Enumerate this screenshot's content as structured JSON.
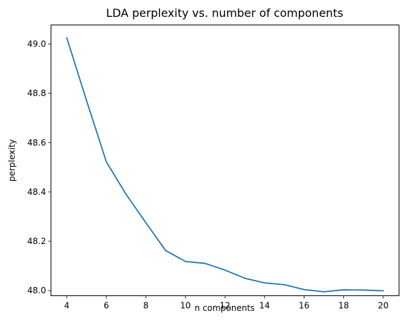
{
  "chart_data": {
    "type": "line",
    "title": "LDA perplexity vs. number of components",
    "xlabel": "n components",
    "ylabel": "perplexity",
    "xlim": [
      3.2,
      20.8
    ],
    "ylim": [
      47.979,
      49.077
    ],
    "x_ticks": [
      4,
      6,
      8,
      10,
      12,
      14,
      16,
      18,
      20
    ],
    "x_tick_labels": [
      "4",
      "6",
      "8",
      "10",
      "12",
      "14",
      "16",
      "18",
      "20"
    ],
    "y_ticks": [
      48.0,
      48.2,
      48.4,
      48.6,
      48.8,
      49.0
    ],
    "y_tick_labels": [
      "48.0",
      "48.2",
      "48.4",
      "48.6",
      "48.8",
      "49.0"
    ],
    "grid": false,
    "series": [
      {
        "color": "#1f77b4",
        "x": [
          4,
          5,
          6,
          7,
          8,
          9,
          10,
          11,
          12,
          13,
          14,
          15,
          16,
          17,
          18,
          19,
          20
        ],
        "y": [
          49.025,
          48.77,
          48.522,
          48.39,
          48.275,
          48.162,
          48.118,
          48.11,
          48.083,
          48.05,
          48.031,
          48.024,
          48.004,
          47.995,
          48.003,
          48.002,
          47.999
        ]
      }
    ]
  }
}
